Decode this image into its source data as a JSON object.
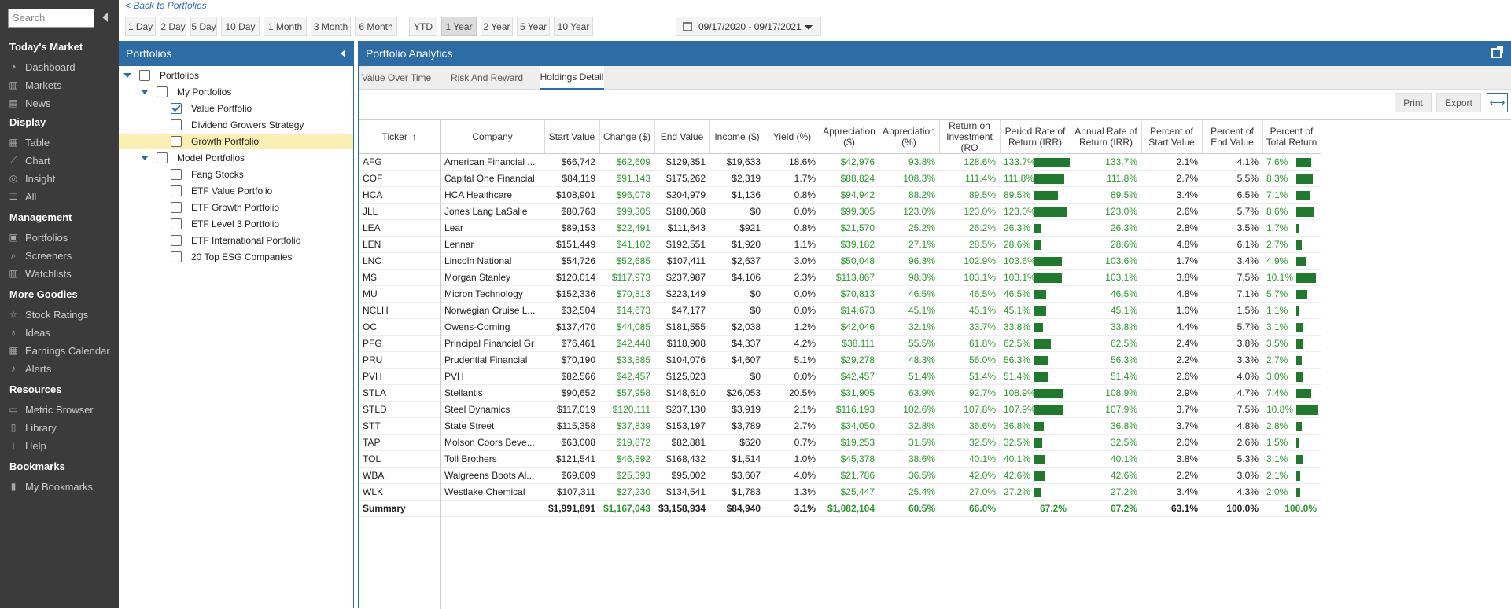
{
  "search": {
    "placeholder": "Search"
  },
  "sidebar": {
    "sections": [
      {
        "title": "Today's Market",
        "items": [
          {
            "label": "Dashboard",
            "icon": "dashboard-icon"
          },
          {
            "label": "Markets",
            "icon": "bar-chart-icon"
          },
          {
            "label": "News",
            "icon": "newspaper-icon"
          }
        ]
      },
      {
        "title": "Display",
        "items": [
          {
            "label": "Table",
            "icon": "table-icon"
          },
          {
            "label": "Chart",
            "icon": "line-chart-icon"
          },
          {
            "label": "Insight",
            "icon": "insight-icon"
          },
          {
            "label": "All",
            "icon": "list-icon"
          }
        ]
      },
      {
        "title": "Management",
        "items": [
          {
            "label": "Portfolios",
            "icon": "briefcase-icon"
          },
          {
            "label": "Screeners",
            "icon": "search-icon"
          },
          {
            "label": "Watchlists",
            "icon": "watchlist-icon"
          }
        ]
      },
      {
        "title": "More Goodies",
        "items": [
          {
            "label": "Stock Ratings",
            "icon": "star-icon"
          },
          {
            "label": "Ideas",
            "icon": "lightbulb-icon"
          },
          {
            "label": "Earnings Calendar",
            "icon": "calendar-icon"
          },
          {
            "label": "Alerts",
            "icon": "bell-icon"
          }
        ]
      },
      {
        "title": "Resources",
        "items": [
          {
            "label": "Metric Browser",
            "icon": "browser-icon"
          },
          {
            "label": "Library",
            "icon": "book-icon"
          },
          {
            "label": "Help",
            "icon": "info-icon"
          }
        ]
      },
      {
        "title": "Bookmarks",
        "items": [
          {
            "label": "My Bookmarks",
            "icon": "bookmark-icon"
          }
        ]
      }
    ]
  },
  "topbar": {
    "back_label": "< Back to Portfolios",
    "ranges": [
      "1 Day",
      "2 Day",
      "5 Day",
      "10 Day",
      "1 Month",
      "3 Month",
      "6 Month",
      "YTD",
      "1 Year",
      "2 Year",
      "5 Year",
      "10 Year"
    ],
    "active_range": "1 Year",
    "date_range": "09/17/2020 - 09/17/2021"
  },
  "portfolios_panel": {
    "title": "Portfolios",
    "tree": [
      {
        "label": "Portfolios",
        "level": 0,
        "toggle": true,
        "checked": false
      },
      {
        "label": "My Portfolios",
        "level": 1,
        "toggle": true,
        "checked": false
      },
      {
        "label": "Value Portfolio",
        "level": 2,
        "toggle": false,
        "checked": true
      },
      {
        "label": "Dividend Growers Strategy",
        "level": 2,
        "toggle": false,
        "checked": false
      },
      {
        "label": "Growth Portfolio",
        "level": 2,
        "toggle": false,
        "checked": false,
        "selected": true
      },
      {
        "label": "Model Portfolios",
        "level": 1,
        "toggle": true,
        "checked": false
      },
      {
        "label": "Fang Stocks",
        "level": 2,
        "toggle": false,
        "checked": false
      },
      {
        "label": "ETF Value Portfolio",
        "level": 2,
        "toggle": false,
        "checked": false
      },
      {
        "label": "ETF Growth Portfolio",
        "level": 2,
        "toggle": false,
        "checked": false
      },
      {
        "label": "ETF Level 3 Portfolio",
        "level": 2,
        "toggle": false,
        "checked": false
      },
      {
        "label": "ETF International Portfolio",
        "level": 2,
        "toggle": false,
        "checked": false
      },
      {
        "label": "20 Top ESG Companies",
        "level": 2,
        "toggle": false,
        "checked": false
      }
    ]
  },
  "analytics": {
    "title": "Portfolio Analytics",
    "tabs": [
      "Value Over Time",
      "Risk And Reward",
      "Holdings Detail"
    ],
    "active_tab": "Holdings Detail",
    "print_label": "Print",
    "export_label": "Export",
    "columns": [
      "Ticker",
      "Company",
      "Start Value",
      "Change ($)",
      "End Value",
      "Income ($)",
      "Yield (%)",
      "Appreciation ($)",
      "Appreciation (%)",
      "Return on Investment (RO",
      "Period Rate of Return (IRR)",
      "Annual Rate of Return (IRR)",
      "Percent of Start Value",
      "Percent of End Value",
      "Percent of Total Return"
    ],
    "rows": [
      [
        "AFG",
        "American Financial ...",
        "$66,742",
        "$62,609",
        "$129,351",
        "$19,633",
        "18.6%",
        "$42,976",
        "93.8%",
        "128.6%",
        "133.7%",
        "133.7%",
        "2.1%",
        "4.1%",
        "7.6%"
      ],
      [
        "COF",
        "Capital One Financial",
        "$84,119",
        "$91,143",
        "$175,262",
        "$2,319",
        "1.7%",
        "$88,824",
        "108.3%",
        "111.4%",
        "111.8%",
        "111.8%",
        "2.7%",
        "5.5%",
        "8.3%"
      ],
      [
        "HCA",
        "HCA Healthcare",
        "$108,901",
        "$96,078",
        "$204,979",
        "$1,136",
        "0.8%",
        "$94,942",
        "88.2%",
        "89.5%",
        "89.5%",
        "89.5%",
        "3.4%",
        "6.5%",
        "7.1%"
      ],
      [
        "JLL",
        "Jones Lang LaSalle",
        "$80,763",
        "$99,305",
        "$180,068",
        "$0",
        "0.0%",
        "$99,305",
        "123.0%",
        "123.0%",
        "123.0%",
        "123.0%",
        "2.6%",
        "5.7%",
        "8.6%"
      ],
      [
        "LEA",
        "Lear",
        "$89,153",
        "$22,491",
        "$111,643",
        "$921",
        "0.8%",
        "$21,570",
        "25.2%",
        "26.2%",
        "26.3%",
        "26.3%",
        "2.8%",
        "3.5%",
        "1.7%"
      ],
      [
        "LEN",
        "Lennar",
        "$151,449",
        "$41,102",
        "$192,551",
        "$1,920",
        "1.1%",
        "$39,182",
        "27.1%",
        "28.5%",
        "28.6%",
        "28.6%",
        "4.8%",
        "6.1%",
        "2.7%"
      ],
      [
        "LNC",
        "Lincoln National",
        "$54,726",
        "$52,685",
        "$107,411",
        "$2,637",
        "3.0%",
        "$50,048",
        "96.3%",
        "102.9%",
        "103.6%",
        "103.6%",
        "1.7%",
        "3.4%",
        "4.9%"
      ],
      [
        "MS",
        "Morgan Stanley",
        "$120,014",
        "$117,973",
        "$237,987",
        "$4,106",
        "2.3%",
        "$113,867",
        "98.3%",
        "103.1%",
        "103.1%",
        "103.1%",
        "3.8%",
        "7.5%",
        "10.1%"
      ],
      [
        "MU",
        "Micron Technology",
        "$152,336",
        "$70,813",
        "$223,149",
        "$0",
        "0.0%",
        "$70,813",
        "46.5%",
        "46.5%",
        "46.5%",
        "46.5%",
        "4.8%",
        "7.1%",
        "5.7%"
      ],
      [
        "NCLH",
        "Norwegian Cruise L...",
        "$32,504",
        "$14,673",
        "$47,177",
        "$0",
        "0.0%",
        "$14,673",
        "45.1%",
        "45.1%",
        "45.1%",
        "45.1%",
        "1.0%",
        "1.5%",
        "1.1%"
      ],
      [
        "OC",
        "Owens-Corning",
        "$137,470",
        "$44,085",
        "$181,555",
        "$2,038",
        "1.2%",
        "$42,046",
        "32.1%",
        "33.7%",
        "33.8%",
        "33.8%",
        "4.4%",
        "5.7%",
        "3.1%"
      ],
      [
        "PFG",
        "Principal Financial Gr",
        "$76,461",
        "$42,448",
        "$118,908",
        "$4,337",
        "4.2%",
        "$38,111",
        "55.5%",
        "61.8%",
        "62.5%",
        "62.5%",
        "2.4%",
        "3.8%",
        "3.5%"
      ],
      [
        "PRU",
        "Prudential Financial",
        "$70,190",
        "$33,885",
        "$104,076",
        "$4,607",
        "5.1%",
        "$29,278",
        "48.3%",
        "56.0%",
        "56.3%",
        "56.3%",
        "2.2%",
        "3.3%",
        "2.7%"
      ],
      [
        "PVH",
        "PVH",
        "$82,566",
        "$42,457",
        "$125,023",
        "$0",
        "0.0%",
        "$42,457",
        "51.4%",
        "51.4%",
        "51.4%",
        "51.4%",
        "2.6%",
        "4.0%",
        "3.0%"
      ],
      [
        "STLA",
        "Stellantis",
        "$90,652",
        "$57,958",
        "$148,610",
        "$26,053",
        "20.5%",
        "$31,905",
        "63.9%",
        "92.7%",
        "108.9%",
        "108.9%",
        "2.9%",
        "4.7%",
        "7.4%"
      ],
      [
        "STLD",
        "Steel Dynamics",
        "$117,019",
        "$120,111",
        "$237,130",
        "$3,919",
        "2.1%",
        "$116,193",
        "102.6%",
        "107.8%",
        "107.9%",
        "107.9%",
        "3.7%",
        "7.5%",
        "10.8%"
      ],
      [
        "STT",
        "State Street",
        "$115,358",
        "$37,839",
        "$153,197",
        "$3,789",
        "2.7%",
        "$34,050",
        "32.8%",
        "36.6%",
        "36.8%",
        "36.8%",
        "3.7%",
        "4.8%",
        "2.8%"
      ],
      [
        "TAP",
        "Molson Coors Beve...",
        "$63,008",
        "$19,872",
        "$82,881",
        "$620",
        "0.7%",
        "$19,253",
        "31.5%",
        "32.5%",
        "32.5%",
        "32.5%",
        "2.0%",
        "2.6%",
        "1.5%"
      ],
      [
        "TOL",
        "Toll Brothers",
        "$121,541",
        "$46,892",
        "$168,432",
        "$1,514",
        "1.0%",
        "$45,378",
        "38.6%",
        "40.1%",
        "40.1%",
        "40.1%",
        "3.8%",
        "5.3%",
        "3.1%"
      ],
      [
        "WBA",
        "Walgreens Boots Al...",
        "$69,609",
        "$25,393",
        "$95,002",
        "$3,607",
        "4.0%",
        "$21,786",
        "36.5%",
        "42.0%",
        "42.6%",
        "42.6%",
        "2.2%",
        "3.0%",
        "2.1%"
      ],
      [
        "WLK",
        "Westlake Chemical",
        "$107,311",
        "$27,230",
        "$134,541",
        "$1,783",
        "1.3%",
        "$25,447",
        "25.4%",
        "27.0%",
        "27.2%",
        "27.2%",
        "3.4%",
        "4.3%",
        "2.0%"
      ]
    ],
    "summary": [
      "Summary",
      "",
      "$1,991,891",
      "$1,167,043",
      "$3,158,934",
      "$84,940",
      "3.1%",
      "$1,082,104",
      "60.5%",
      "66.0%",
      "67.2%",
      "67.2%",
      "63.1%",
      "100.0%",
      "100.0%"
    ],
    "colors": {
      "header_blue": "#2e6ca5",
      "positive_green": "#2b9a2b",
      "bar_green": "#1f7a2e",
      "sidebar_bg": "#3b3b3b"
    }
  }
}
